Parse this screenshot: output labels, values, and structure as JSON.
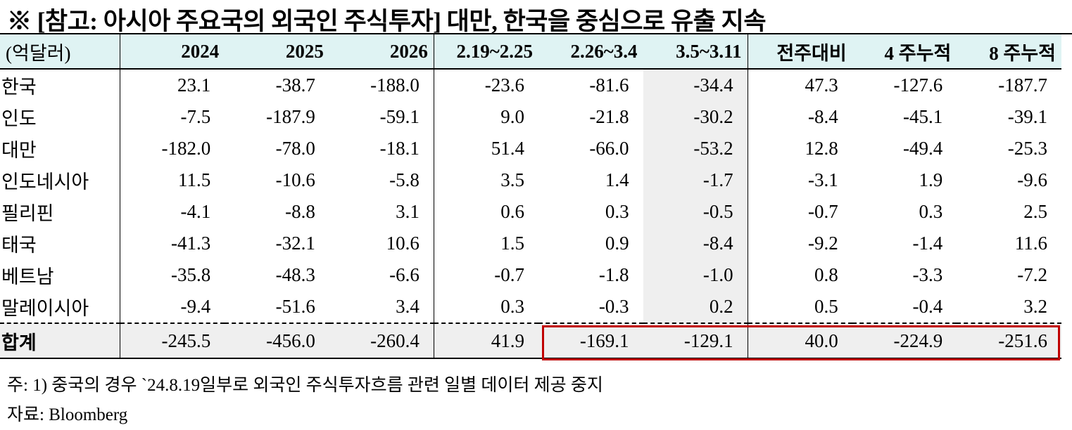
{
  "title": "※ [참고: 아시아 주요국의 외국인 주식투자] 대만, 한국을 중심으로 유출 지속",
  "table": {
    "headers": [
      "(억달러)",
      "2024",
      "2025",
      "2026",
      "2.19~2.25",
      "2.26~3.4",
      "3.5~3.11",
      "전주대비",
      "4 주누적",
      "8 주누적"
    ],
    "rows": [
      {
        "label": "한국",
        "values": [
          "23.1",
          "-38.7",
          "-188.0",
          "-23.6",
          "-81.6",
          "-34.4",
          "47.3",
          "-127.6",
          "-187.7"
        ]
      },
      {
        "label": "인도",
        "values": [
          "-7.5",
          "-187.9",
          "-59.1",
          "9.0",
          "-21.8",
          "-30.2",
          "-8.4",
          "-45.1",
          "-39.1"
        ]
      },
      {
        "label": "대만",
        "values": [
          "-182.0",
          "-78.0",
          "-18.1",
          "51.4",
          "-66.0",
          "-53.2",
          "12.8",
          "-49.4",
          "-25.3"
        ]
      },
      {
        "label": "인도네시아",
        "values": [
          "11.5",
          "-10.6",
          "-5.8",
          "3.5",
          "1.4",
          "-1.7",
          "-3.1",
          "1.9",
          "-9.6"
        ]
      },
      {
        "label": "필리핀",
        "values": [
          "-4.1",
          "-8.8",
          "3.1",
          "0.6",
          "0.3",
          "-0.5",
          "-0.7",
          "0.3",
          "2.5"
        ]
      },
      {
        "label": "태국",
        "values": [
          "-41.3",
          "-32.1",
          "10.6",
          "1.5",
          "0.9",
          "-8.4",
          "-9.2",
          "-1.4",
          "11.6"
        ]
      },
      {
        "label": "베트남",
        "values": [
          "-35.8",
          "-48.3",
          "-6.6",
          "-0.7",
          "-1.8",
          "-1.0",
          "0.8",
          "-3.3",
          "-7.2"
        ]
      },
      {
        "label": "말레이시아",
        "values": [
          "-9.4",
          "-51.6",
          "3.4",
          "0.3",
          "-0.3",
          "0.2",
          "0.5",
          "-0.4",
          "3.2"
        ]
      }
    ],
    "total": {
      "label": "합계",
      "values": [
        "-245.5",
        "-456.0",
        "-260.4",
        "41.9",
        "-169.1",
        "-129.1",
        "40.0",
        "-224.9",
        "-251.6"
      ]
    }
  },
  "notes": {
    "note1": "주: 1) 중국의 경우 `24.8.19일부로 외국인 주식투자흐름 관련 일별 데이터 제공 중지",
    "source": "자료: Bloomberg"
  },
  "colors": {
    "header_bg": "#dff3f3",
    "shade": "#efefef",
    "highlight_border": "#c00000"
  }
}
